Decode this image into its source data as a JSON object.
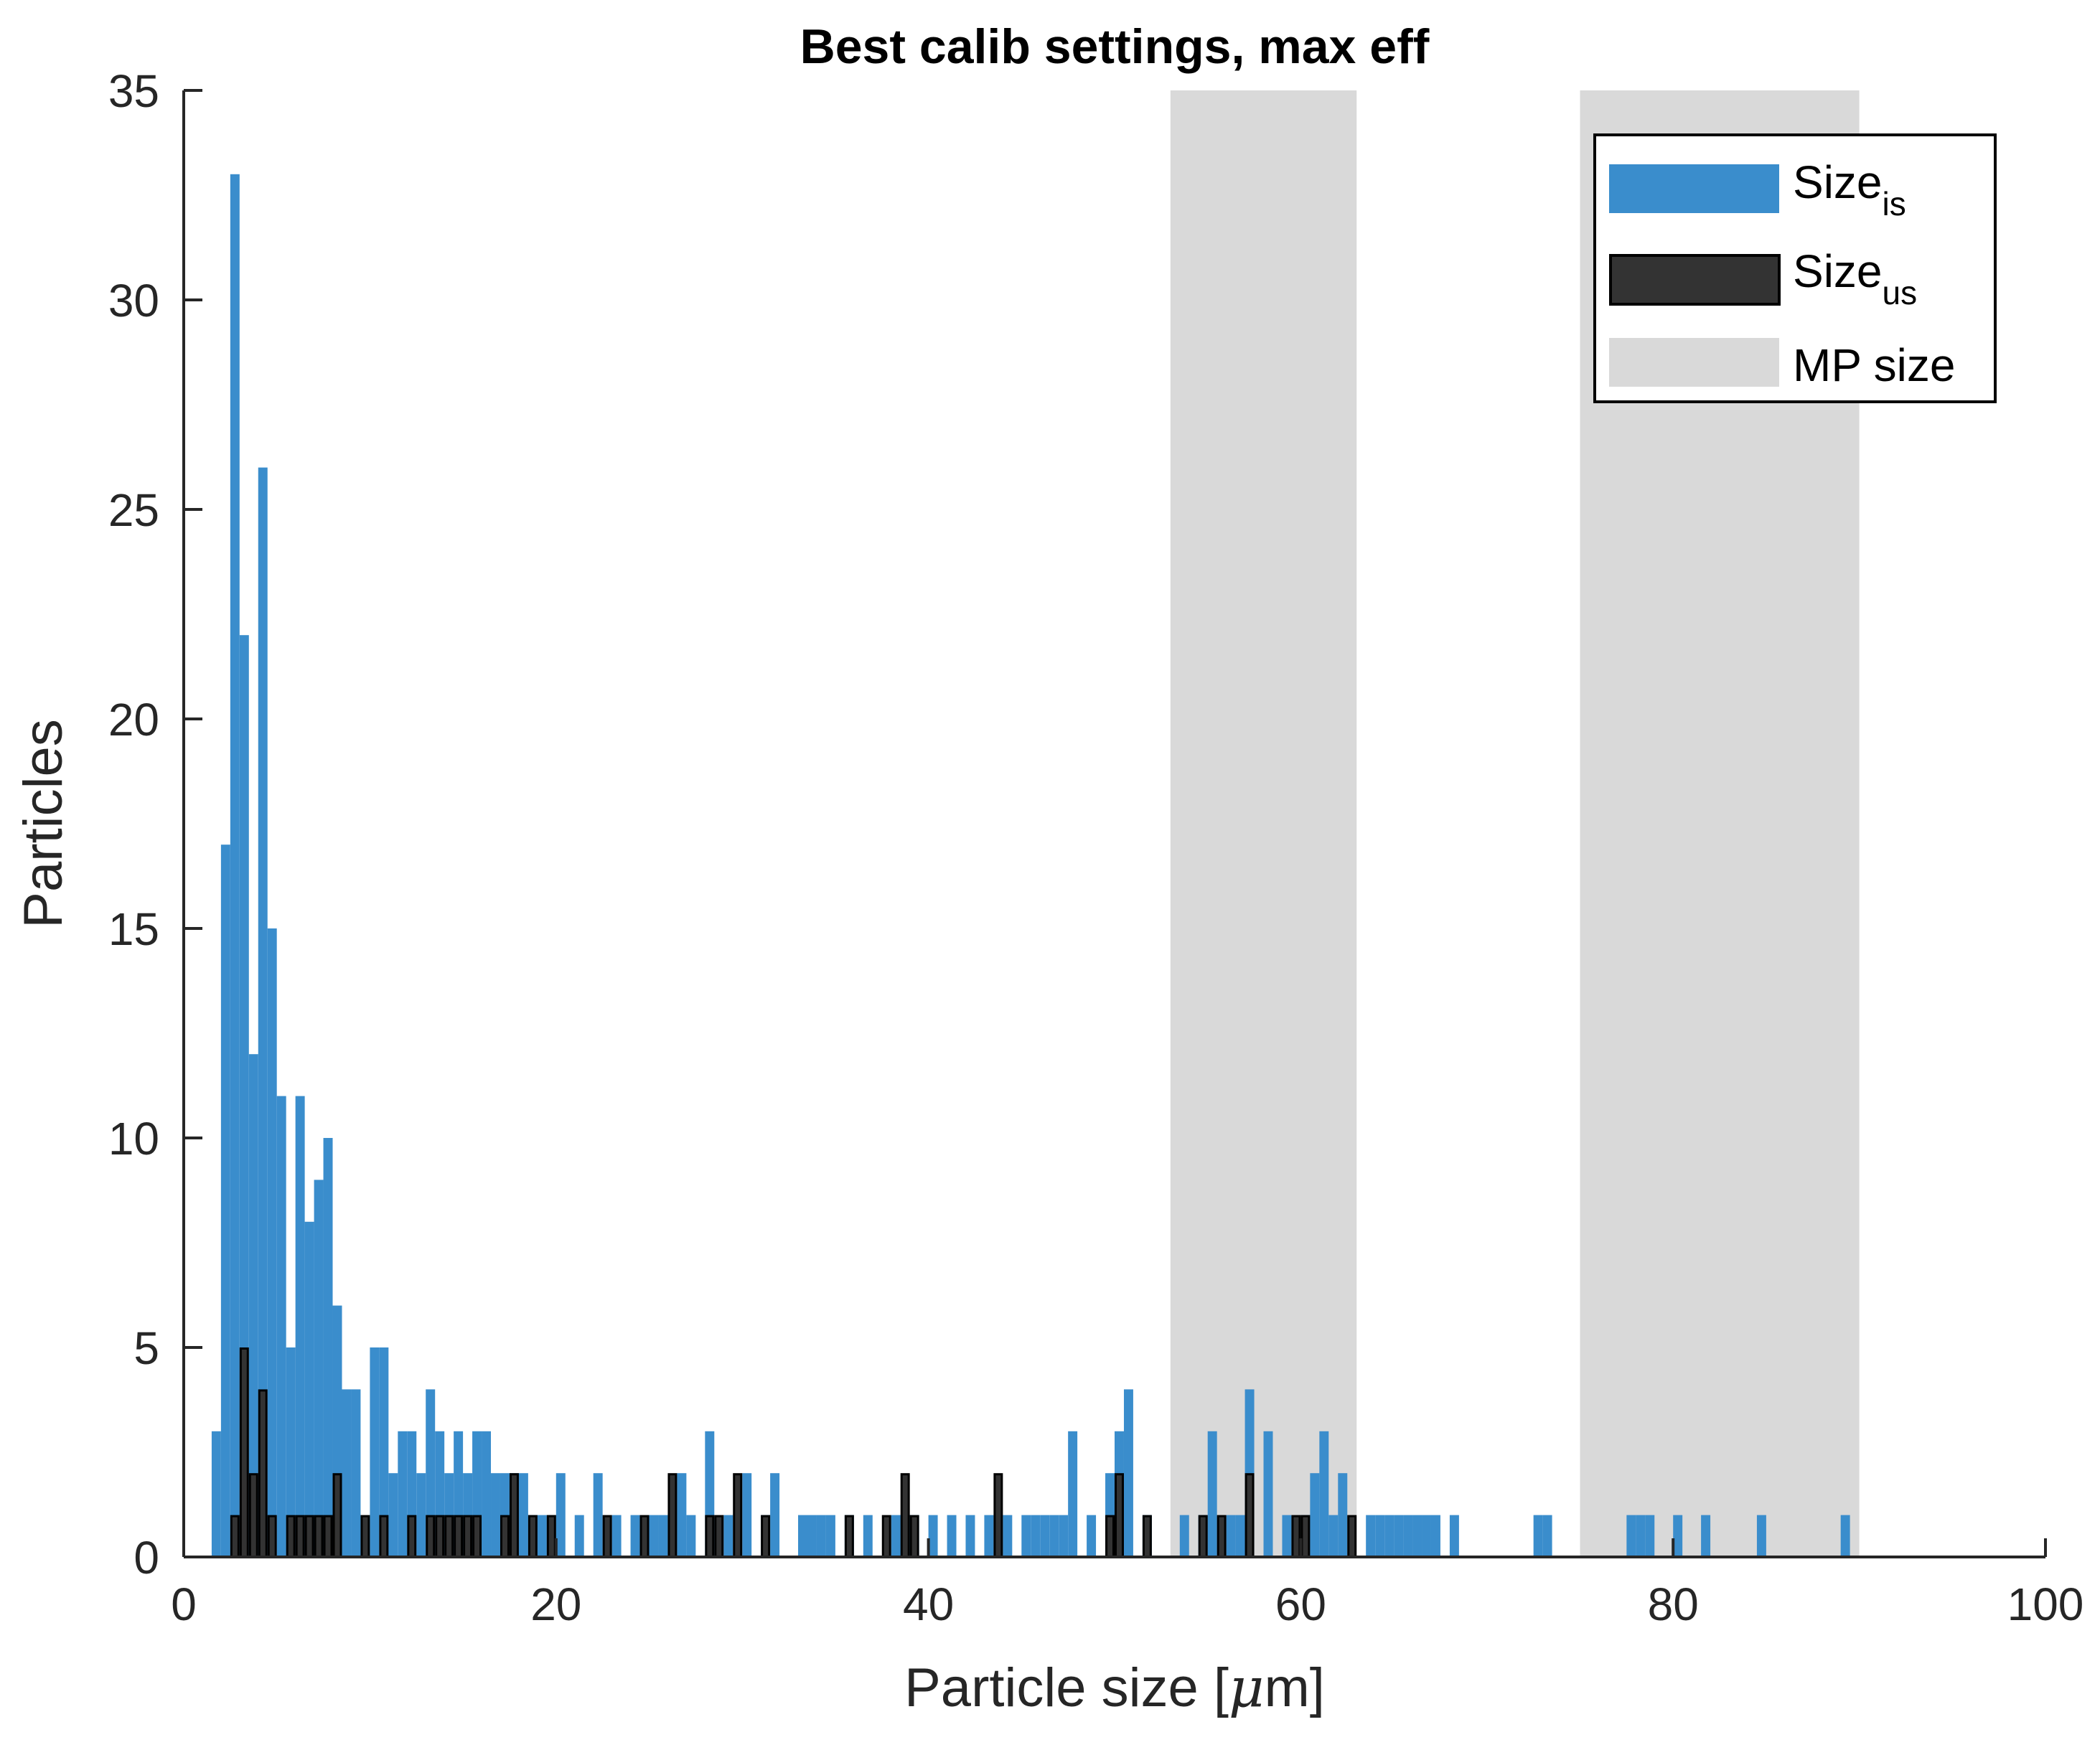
{
  "chart_data": {
    "type": "bar",
    "title": "Best calib settings, max eff",
    "xlabel": "Particle size [μm]",
    "xlabel_parts": {
      "main": "Particle size [",
      "mu": "μ",
      "rest": "m]"
    },
    "ylabel": "Particles",
    "xlim": [
      0,
      100
    ],
    "ylim": [
      0,
      35
    ],
    "xticks": [
      "0",
      "20",
      "40",
      "60",
      "80",
      "100"
    ],
    "yticks": [
      "0",
      "5",
      "10",
      "15",
      "20",
      "25",
      "30",
      "35"
    ],
    "bin_width": 0.5,
    "mp_size_ranges": [
      [
        53,
        63
      ],
      [
        75,
        90
      ]
    ],
    "series": [
      {
        "name": "Size_is",
        "label_main": "Size",
        "label_sub": "is",
        "color": "#3A8DCC",
        "bins": [
          [
            1.5,
            3
          ],
          [
            2.0,
            17
          ],
          [
            2.5,
            33
          ],
          [
            3.0,
            22
          ],
          [
            3.5,
            12
          ],
          [
            4.0,
            26
          ],
          [
            4.5,
            15
          ],
          [
            5.0,
            11
          ],
          [
            5.5,
            5
          ],
          [
            6.0,
            11
          ],
          [
            6.5,
            8
          ],
          [
            7.0,
            9
          ],
          [
            7.5,
            10
          ],
          [
            8.0,
            6
          ],
          [
            8.5,
            4
          ],
          [
            9.0,
            4
          ],
          [
            10.0,
            5
          ],
          [
            10.5,
            5
          ],
          [
            11.0,
            2
          ],
          [
            11.5,
            3
          ],
          [
            12.0,
            3
          ],
          [
            12.5,
            2
          ],
          [
            13.0,
            4
          ],
          [
            13.5,
            3
          ],
          [
            14.0,
            2
          ],
          [
            14.5,
            3
          ],
          [
            15.0,
            2
          ],
          [
            15.5,
            3
          ],
          [
            16.0,
            3
          ],
          [
            16.5,
            2
          ],
          [
            17.0,
            2
          ],
          [
            17.5,
            2
          ],
          [
            18.0,
            2
          ],
          [
            18.5,
            1
          ],
          [
            19.0,
            1
          ],
          [
            19.5,
            1
          ],
          [
            20.0,
            2
          ],
          [
            21.0,
            1
          ],
          [
            22.0,
            2
          ],
          [
            23.0,
            1
          ],
          [
            24.0,
            1
          ],
          [
            25.0,
            1
          ],
          [
            25.5,
            1
          ],
          [
            26.5,
            2
          ],
          [
            27.0,
            1
          ],
          [
            28.0,
            3
          ],
          [
            29.0,
            1
          ],
          [
            30.0,
            2
          ],
          [
            31.0,
            1
          ],
          [
            31.5,
            2
          ],
          [
            33.0,
            1
          ],
          [
            33.5,
            1
          ],
          [
            34.0,
            1
          ],
          [
            34.5,
            1
          ],
          [
            35.5,
            1
          ],
          [
            36.5,
            1
          ],
          [
            38.0,
            1
          ],
          [
            38.5,
            1
          ],
          [
            39.0,
            1
          ],
          [
            40.0,
            1
          ],
          [
            41.0,
            1
          ],
          [
            42.0,
            1
          ],
          [
            43.0,
            1
          ],
          [
            44.0,
            1
          ],
          [
            45.0,
            1
          ],
          [
            45.5,
            1
          ],
          [
            46.0,
            1
          ],
          [
            46.5,
            1
          ],
          [
            47.0,
            1
          ],
          [
            47.5,
            3
          ],
          [
            48.5,
            1
          ],
          [
            49.5,
            2
          ],
          [
            50.0,
            3
          ],
          [
            50.5,
            4
          ],
          [
            51.5,
            1
          ],
          [
            53.5,
            1
          ],
          [
            54.5,
            1
          ],
          [
            55.0,
            3
          ],
          [
            56.0,
            1
          ],
          [
            56.5,
            1
          ],
          [
            57.0,
            4
          ],
          [
            58.0,
            3
          ],
          [
            59.0,
            1
          ],
          [
            60.0,
            1
          ],
          [
            60.5,
            2
          ],
          [
            61.0,
            3
          ],
          [
            61.5,
            1
          ],
          [
            62.0,
            2
          ],
          [
            63.5,
            1
          ],
          [
            64.0,
            1
          ],
          [
            64.5,
            1
          ],
          [
            65.0,
            1
          ],
          [
            65.5,
            1
          ],
          [
            66.0,
            1
          ],
          [
            66.5,
            1
          ],
          [
            67.0,
            1
          ],
          [
            68.0,
            1
          ],
          [
            72.5,
            1
          ],
          [
            73.0,
            1
          ],
          [
            77.5,
            1
          ],
          [
            78.0,
            1
          ],
          [
            78.5,
            1
          ],
          [
            80.0,
            1
          ],
          [
            81.5,
            1
          ],
          [
            84.5,
            1
          ],
          [
            89.0,
            1
          ]
        ]
      },
      {
        "name": "Size_us",
        "label_main": "Size",
        "label_sub": "us",
        "color": "#333333",
        "bins": [
          [
            2.5,
            1
          ],
          [
            3.0,
            5
          ],
          [
            3.5,
            2
          ],
          [
            4.0,
            4
          ],
          [
            4.5,
            1
          ],
          [
            5.5,
            1
          ],
          [
            6.0,
            1
          ],
          [
            6.5,
            1
          ],
          [
            7.0,
            1
          ],
          [
            7.5,
            1
          ],
          [
            8.0,
            2
          ],
          [
            9.5,
            1
          ],
          [
            10.5,
            1
          ],
          [
            12.0,
            1
          ],
          [
            13.0,
            1
          ],
          [
            13.5,
            1
          ],
          [
            14.0,
            1
          ],
          [
            14.5,
            1
          ],
          [
            15.0,
            1
          ],
          [
            15.5,
            1
          ],
          [
            17.0,
            1
          ],
          [
            17.5,
            2
          ],
          [
            18.5,
            1
          ],
          [
            19.5,
            1
          ],
          [
            22.5,
            1
          ],
          [
            24.5,
            1
          ],
          [
            26.0,
            2
          ],
          [
            28.0,
            1
          ],
          [
            28.5,
            1
          ],
          [
            29.5,
            2
          ],
          [
            31.0,
            1
          ],
          [
            35.5,
            1
          ],
          [
            37.5,
            1
          ],
          [
            38.5,
            2
          ],
          [
            39.0,
            1
          ],
          [
            43.5,
            2
          ],
          [
            49.5,
            1
          ],
          [
            50.0,
            2
          ],
          [
            51.5,
            1
          ],
          [
            54.5,
            1
          ],
          [
            55.5,
            1
          ],
          [
            57.0,
            2
          ],
          [
            59.5,
            1
          ],
          [
            60.0,
            1
          ],
          [
            62.5,
            1
          ]
        ]
      }
    ],
    "legend": {
      "position": "top-right",
      "items": [
        {
          "main": "Size",
          "sub": "is",
          "color": "#3A8DCC"
        },
        {
          "main": "Size",
          "sub": "us",
          "color": "#333333"
        },
        {
          "main": "MP size",
          "sub": "",
          "color": "#D9D9D9"
        }
      ]
    },
    "colors": {
      "shade": "#D9D9D9",
      "axis": "#262626"
    },
    "grid": false
  }
}
